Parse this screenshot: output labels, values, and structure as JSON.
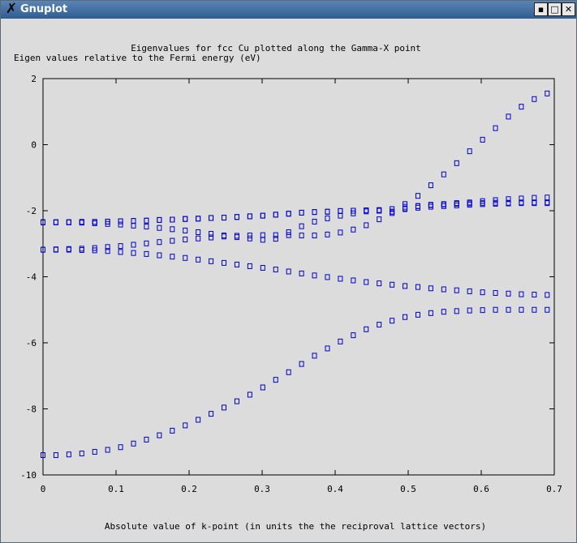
{
  "window": {
    "title": "Gnuplot",
    "icon": "x-logo-icon",
    "controls": [
      "minimize-icon",
      "maximize-icon",
      "close-icon"
    ]
  },
  "chart_data": {
    "type": "scatter",
    "title": "Eigenvalues for fcc Cu plotted along the Gamma-X point",
    "ylabel": "Eigen values relative to the Fermi energy (eV)",
    "xlabel": "Absolute value of k-point (in units the the reciproval lattice vectors)",
    "xlim": [
      0,
      0.7
    ],
    "ylim": [
      -10,
      2
    ],
    "xticks": [
      "0",
      "0.1",
      "0.2",
      "0.3",
      "0.4",
      "0.5",
      "0.6",
      "0.7"
    ],
    "yticks": [
      "-10",
      "-8",
      "-6",
      "-4",
      "-2",
      "0",
      "2"
    ],
    "grid": false,
    "marker": "square",
    "marker_color": "#0000cc",
    "x": [
      0,
      0.0177,
      0.0354,
      0.0531,
      0.0708,
      0.0885,
      0.1062,
      0.1239,
      0.1416,
      0.1593,
      0.177,
      0.1947,
      0.2124,
      0.2301,
      0.2478,
      0.2655,
      0.2832,
      0.3009,
      0.3186,
      0.3363,
      0.354,
      0.3717,
      0.3894,
      0.4071,
      0.4248,
      0.4425,
      0.4602,
      0.4779,
      0.4956,
      0.5133,
      0.531,
      0.5487,
      0.5664,
      0.5841,
      0.6018,
      0.6195,
      0.6372,
      0.6549,
      0.6726,
      0.6903
    ],
    "series": [
      {
        "values": [
          -9.4,
          -9.4,
          -9.38,
          -9.35,
          -9.3,
          -9.24,
          -9.16,
          -9.05,
          -8.93,
          -8.8,
          -8.66,
          -8.5,
          -8.33,
          -8.15,
          -7.96,
          -7.77,
          -7.57,
          -7.35,
          -7.12,
          -6.89,
          -6.64,
          -6.39,
          -6.17,
          -5.96,
          -5.77,
          -5.59,
          -5.45,
          -5.33,
          -5.22,
          -5.15,
          -5.1,
          -5.06,
          -5.04,
          -5.02,
          -5.01,
          -5.0,
          -5.0,
          -5.0,
          -5.0,
          -5.0
        ]
      },
      {
        "values": [
          -3.18,
          -3.18,
          -3.18,
          -3.19,
          -3.2,
          -3.22,
          -3.25,
          -3.28,
          -3.31,
          -3.35,
          -3.39,
          -3.43,
          -3.48,
          -3.53,
          -3.58,
          -3.63,
          -3.68,
          -3.73,
          -3.78,
          -3.84,
          -3.9,
          -3.96,
          -4.01,
          -4.06,
          -4.11,
          -4.16,
          -4.2,
          -4.24,
          -4.28,
          -4.31,
          -4.35,
          -4.38,
          -4.41,
          -4.44,
          -4.47,
          -4.49,
          -4.51,
          -4.53,
          -4.54,
          -4.55
        ]
      },
      {
        "values": [
          -3.18,
          -3.17,
          -3.16,
          -3.15,
          -3.13,
          -3.1,
          -3.07,
          -3.03,
          -2.99,
          -2.95,
          -2.91,
          -2.87,
          -2.84,
          -2.81,
          -2.78,
          -2.76,
          -2.75,
          -2.74,
          -2.74,
          -2.74,
          -2.75,
          -2.75,
          -2.72,
          -2.66,
          -2.57,
          -2.44,
          -2.26,
          -2.07,
          -1.88,
          -1.86,
          -1.83,
          -1.81,
          -1.79,
          -1.78,
          -1.77,
          -1.76,
          -1.76,
          -1.75,
          -1.75,
          -1.75
        ]
      },
      {
        "values": [
          -2.35,
          -2.35,
          -2.35,
          -2.36,
          -2.38,
          -2.4,
          -2.42,
          -2.45,
          -2.48,
          -2.52,
          -2.56,
          -2.6,
          -2.65,
          -2.7,
          -2.75,
          -2.8,
          -2.84,
          -2.88,
          -2.85,
          -2.65,
          -2.47,
          -2.33,
          -2.23,
          -2.15,
          -2.08,
          -2.02,
          -1.98,
          -1.95,
          -1.93,
          -1.91,
          -1.88,
          -1.86,
          -1.84,
          -1.82,
          -1.8,
          -1.79,
          -1.78,
          -1.77,
          -1.77,
          -1.77
        ]
      },
      {
        "values": [
          -2.35,
          -2.35,
          -2.35,
          -2.34,
          -2.34,
          -2.33,
          -2.32,
          -2.31,
          -2.3,
          -2.28,
          -2.27,
          -2.25,
          -2.24,
          -2.22,
          -2.21,
          -2.19,
          -2.17,
          -2.15,
          -2.12,
          -2.09,
          -2.06,
          -2.04,
          -2.03,
          -2.01,
          -2.0,
          -1.99,
          -2.0,
          -2.03,
          -1.95,
          -1.86,
          -1.82,
          -1.8,
          -1.77,
          -1.75,
          -1.71,
          -1.68,
          -1.65,
          -1.63,
          -1.61,
          -1.6
        ]
      },
      {
        "values": [
          -2.35,
          -2.35,
          -2.35,
          -2.34,
          -2.34,
          -2.33,
          -2.32,
          -2.31,
          -2.3,
          -2.28,
          -2.27,
          -2.25,
          -2.24,
          -2.22,
          -2.21,
          -2.19,
          -2.17,
          -2.15,
          -2.12,
          -2.09,
          -2.06,
          -2.04,
          -2.03,
          -2.01,
          -2.0,
          -1.99,
          -2.0,
          -2.03,
          -1.8,
          -1.55,
          -1.23,
          -0.9,
          -0.56,
          -0.2,
          0.15,
          0.5,
          0.85,
          1.15,
          1.38,
          1.55
        ]
      }
    ]
  }
}
